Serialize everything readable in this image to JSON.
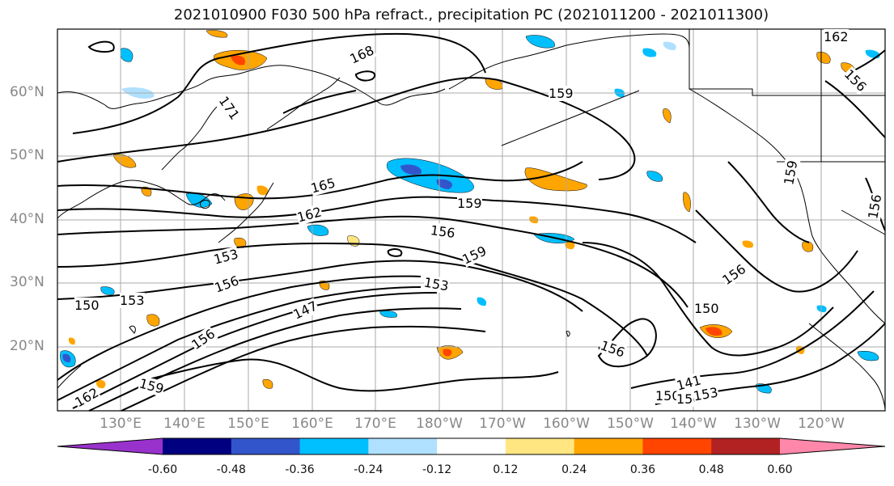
{
  "title": "2021010900 F030 500 hPa refract., precipitation PC (2021011200 - 2021011300)",
  "lat_labels": [
    "60°N",
    "50°N",
    "40°N",
    "30°N",
    "20°N"
  ],
  "lon_labels": [
    "130°E",
    "140°E",
    "150°E",
    "160°E",
    "170°E",
    "180°W",
    "170°W",
    "160°W",
    "150°W",
    "140°W",
    "130°W",
    "120°W"
  ],
  "contour_labels": [
    "168",
    "171",
    "159",
    "165",
    "162",
    "159",
    "156",
    "153",
    "159",
    "156",
    "150",
    "153",
    "147",
    "156",
    "153",
    "150",
    "156",
    "159",
    "159",
    "150",
    "156",
    "156",
    "162",
    "156",
    "141",
    "150",
    "153",
    "162"
  ],
  "colorbar": {
    "ticks": [
      "-0.60",
      "-0.48",
      "-0.36",
      "-0.24",
      "-0.12",
      "0.12",
      "0.24",
      "0.36",
      "0.48",
      "0.60"
    ],
    "colors": [
      "#9932cc",
      "#000080",
      "#3355cc",
      "#00bfff",
      "#b0e0ff",
      "#ffffff",
      "#ffe680",
      "#ffa500",
      "#ff4500",
      "#b22222",
      "#ff88aa"
    ]
  },
  "map_colors": {
    "contour": "#000000",
    "grid": "#aaaaaa",
    "coast": "#000000"
  }
}
